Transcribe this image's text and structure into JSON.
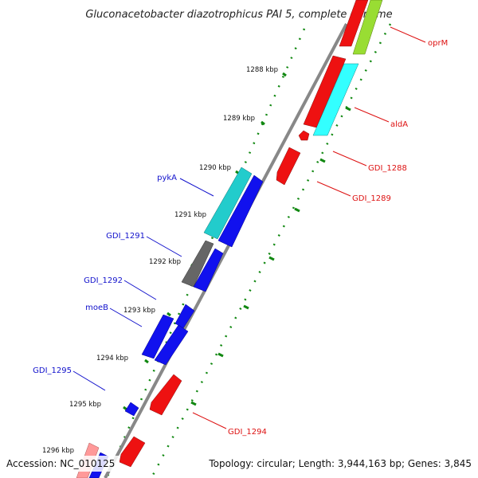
{
  "title": "Gluconacetobacter diazotrophicus PAI 5, complete genome",
  "footer": {
    "accession": "Accession: NC_010125",
    "topology": "Topology: circular; Length: 3,944,163 bp; Genes: 3,845"
  },
  "colors": {
    "backbone": "#888888",
    "ticks": "#118811",
    "forward_label": "#1111cc",
    "reverse_label": "#dd1111",
    "blue": "#1111ee",
    "cyan": "#22cccc",
    "gray": "#666666",
    "red": "#ee1111",
    "cyan_bright": "#33ffff",
    "lime": "#99dd33",
    "pink": "#ff9999"
  },
  "kbp_labels": [
    "1288 kbp",
    "1289 kbp",
    "1290 kbp",
    "1291 kbp",
    "1292 kbp",
    "1293 kbp",
    "1294 kbp",
    "1295 kbp",
    "1296 kbp"
  ],
  "left_labels": [
    "pykA",
    "GDI_1291",
    "GDI_1292",
    "moeB",
    "GDI_1295"
  ],
  "right_labels": [
    "oprM",
    "aldA",
    "GDI_1288",
    "GDI_1289",
    "GDI_1294"
  ]
}
